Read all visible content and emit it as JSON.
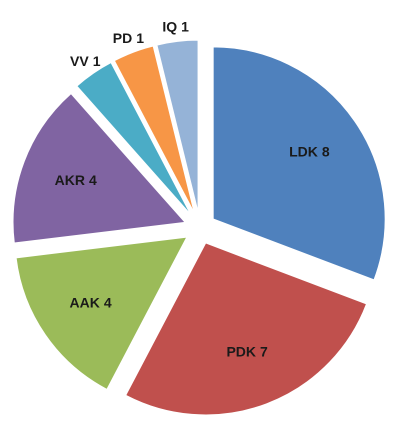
{
  "chart_data": {
    "type": "pie",
    "categories": [
      "LDK",
      "PDK",
      "AAK",
      "AKR",
      "VV",
      "PD",
      "IQ"
    ],
    "values": [
      8,
      7,
      4,
      4,
      1,
      1,
      1
    ],
    "colors": [
      "#4f81bd",
      "#c0504d",
      "#9bbb59",
      "#8064a2",
      "#4bacc6",
      "#f79646",
      "#95b3d7"
    ]
  }
}
